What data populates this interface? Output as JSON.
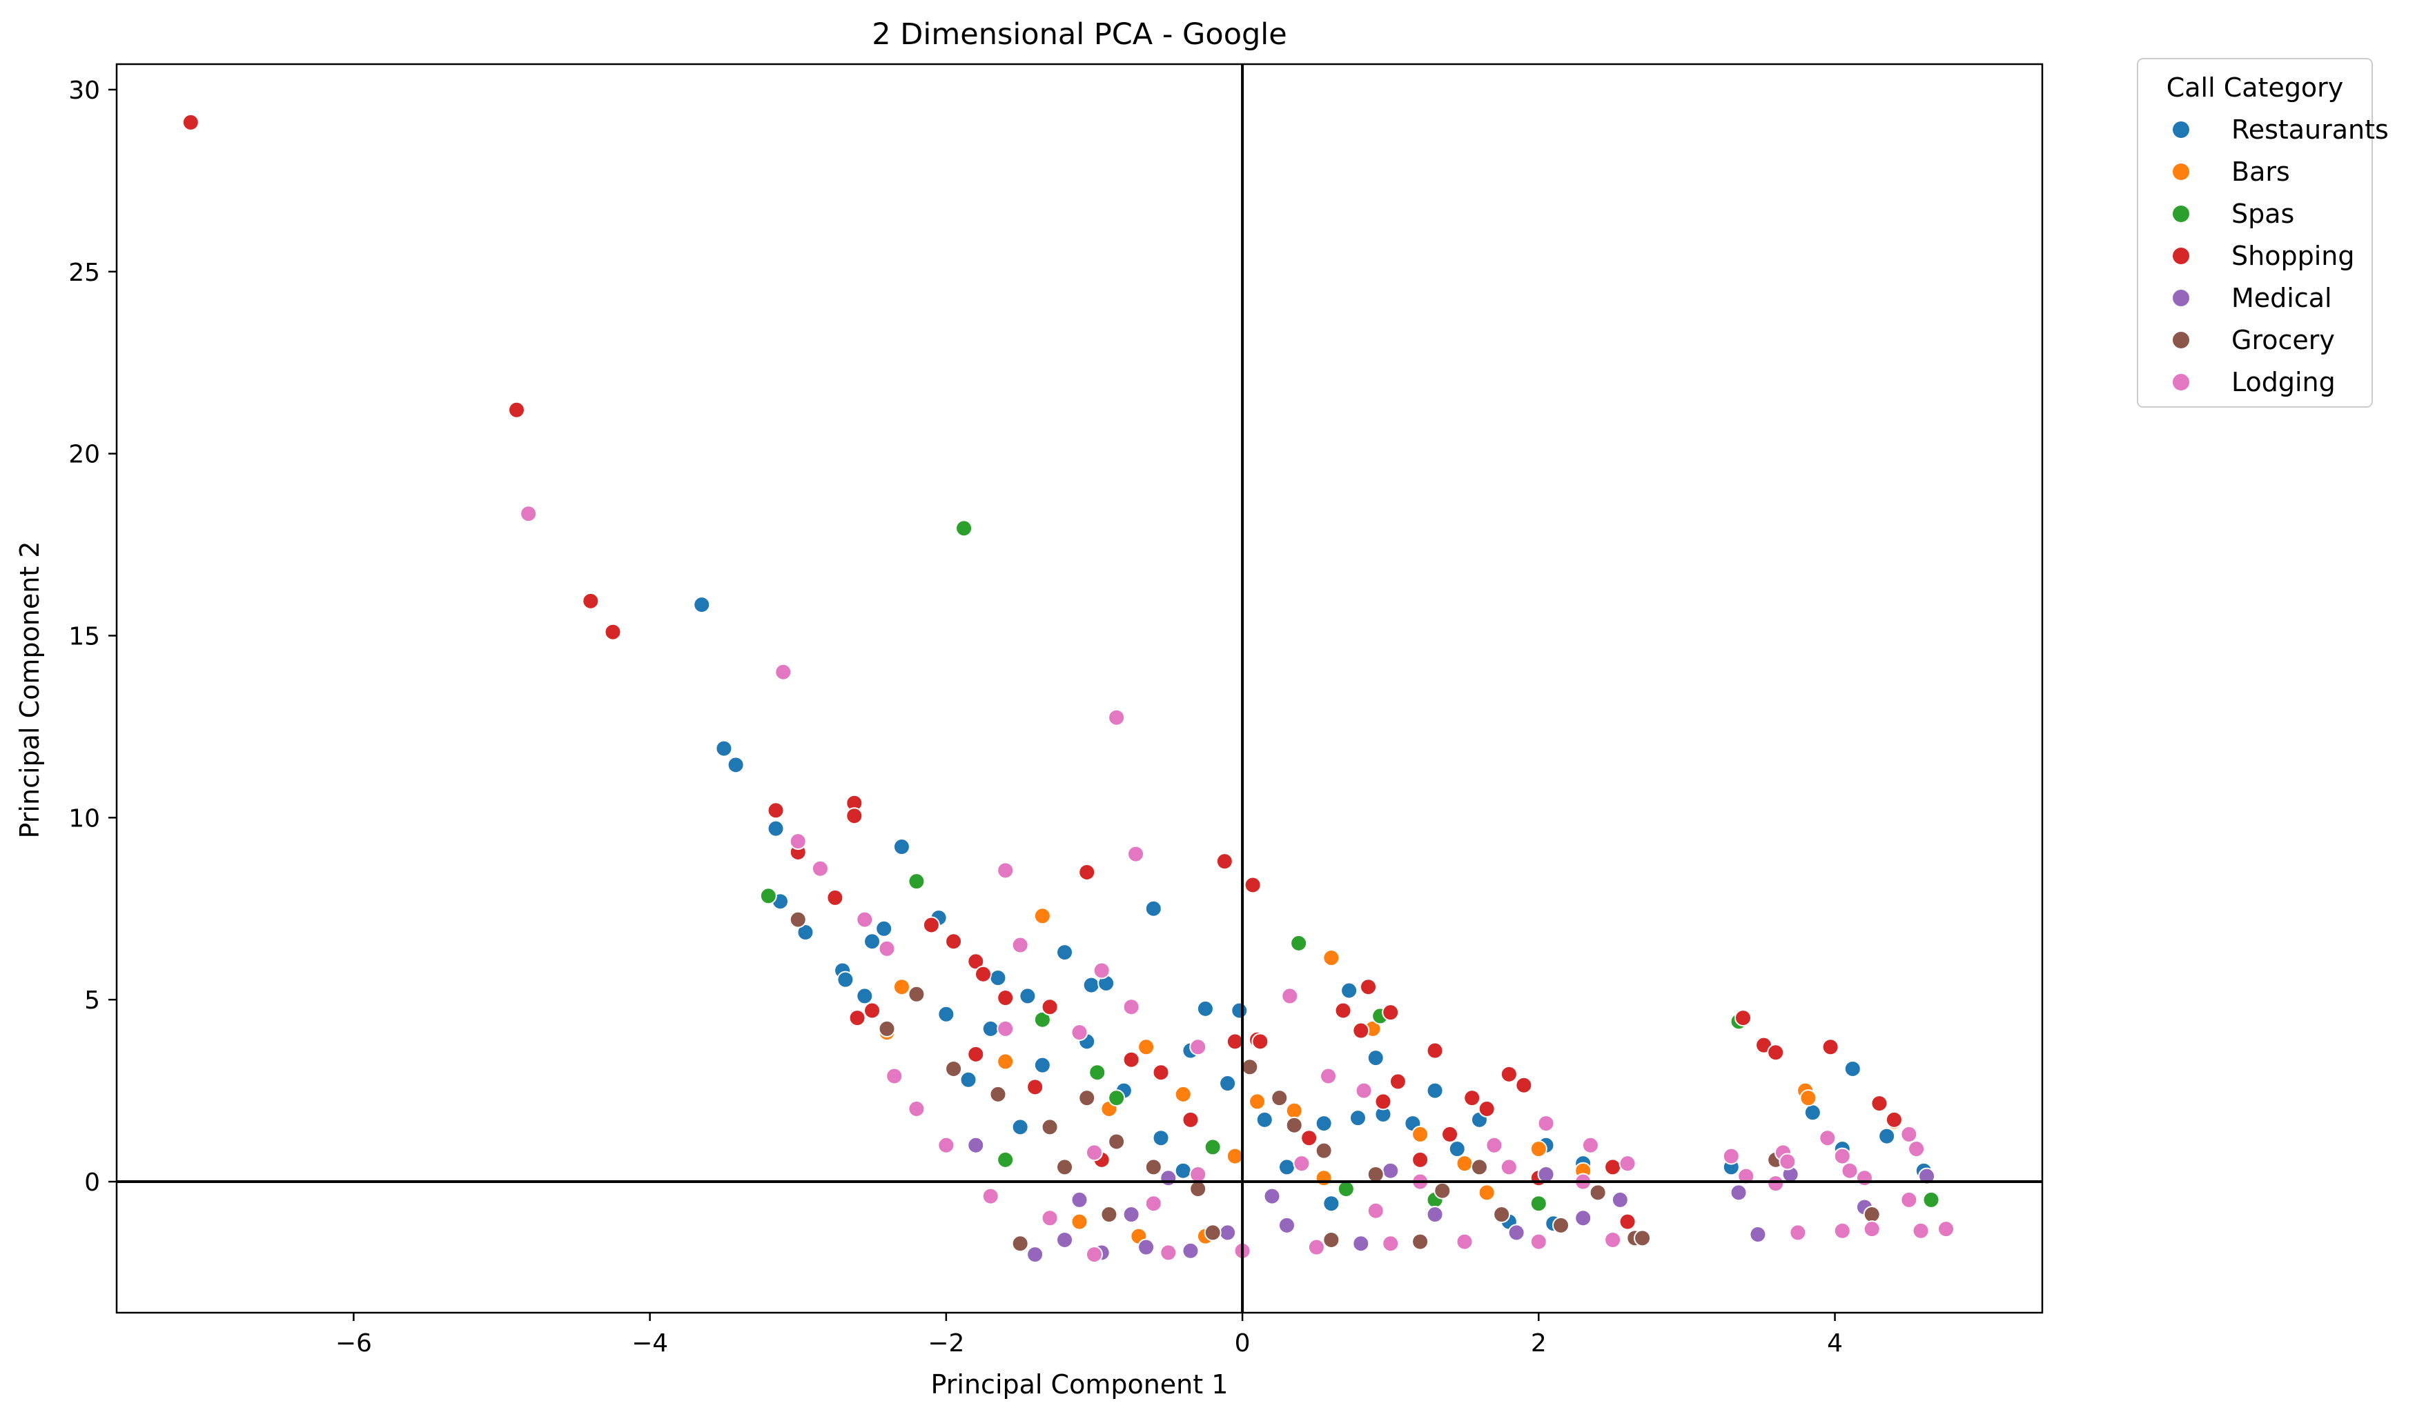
{
  "chart_data": {
    "type": "scatter",
    "title": "2 Dimensional PCA - Google",
    "xlabel": "Principal Component 1",
    "ylabel": "Principal Component 2",
    "xlim": [
      -7.6,
      5.4
    ],
    "ylim": [
      -3.6,
      30.7
    ],
    "xticks": [
      -6,
      -4,
      -2,
      0,
      2,
      4
    ],
    "yticks": [
      0,
      5,
      10,
      15,
      20,
      25,
      30
    ],
    "reference_lines": {
      "x": 0,
      "y": 0
    },
    "grid": false,
    "legend": {
      "title": "Call Category",
      "placement": "outside-top-right"
    },
    "series": [
      {
        "name": "Restaurants",
        "color": "#1f77b4",
        "points": [
          [
            -3.65,
            15.85
          ],
          [
            -3.5,
            11.9
          ],
          [
            -3.42,
            11.45
          ],
          [
            -3.15,
            9.7
          ],
          [
            -3.12,
            7.7
          ],
          [
            -2.95,
            6.85
          ],
          [
            -2.3,
            9.2
          ],
          [
            -2.42,
            6.95
          ],
          [
            -2.5,
            6.6
          ],
          [
            -2.7,
            5.8
          ],
          [
            -2.68,
            5.55
          ],
          [
            -2.55,
            5.1
          ],
          [
            -2.05,
            7.25
          ],
          [
            -2.0,
            4.6
          ],
          [
            -1.65,
            5.6
          ],
          [
            -1.45,
            5.1
          ],
          [
            -1.2,
            6.3
          ],
          [
            -1.02,
            5.4
          ],
          [
            -0.92,
            5.45
          ],
          [
            -0.6,
            7.5
          ],
          [
            -0.25,
            4.75
          ],
          [
            -0.02,
            4.7
          ],
          [
            -1.7,
            4.2
          ],
          [
            -1.35,
            3.2
          ],
          [
            -1.05,
            3.85
          ],
          [
            -0.8,
            2.5
          ],
          [
            -0.35,
            3.6
          ],
          [
            -0.1,
            2.7
          ],
          [
            0.15,
            1.7
          ],
          [
            0.55,
            1.6
          ],
          [
            0.78,
            1.75
          ],
          [
            0.95,
            1.85
          ],
          [
            1.15,
            1.6
          ],
          [
            1.3,
            2.5
          ],
          [
            1.6,
            1.7
          ],
          [
            2.05,
            1.0
          ],
          [
            2.3,
            0.5
          ],
          [
            0.9,
            3.4
          ],
          [
            0.72,
            5.25
          ],
          [
            -1.85,
            2.8
          ],
          [
            -0.55,
            1.2
          ],
          [
            0.3,
            0.4
          ],
          [
            1.8,
            -1.1
          ],
          [
            2.1,
            -1.15
          ],
          [
            3.3,
            0.4
          ],
          [
            3.85,
            1.9
          ],
          [
            4.05,
            0.9
          ],
          [
            4.12,
            3.1
          ],
          [
            4.35,
            1.25
          ],
          [
            4.6,
            0.3
          ],
          [
            -1.5,
            1.5
          ],
          [
            -0.4,
            0.3
          ],
          [
            0.6,
            -0.6
          ],
          [
            1.45,
            0.9
          ]
        ]
      },
      {
        "name": "Bars",
        "color": "#ff7f0e",
        "points": [
          [
            -2.3,
            5.35
          ],
          [
            -2.4,
            4.1
          ],
          [
            -1.35,
            7.3
          ],
          [
            -0.65,
            3.7
          ],
          [
            -0.4,
            2.4
          ],
          [
            -0.05,
            0.7
          ],
          [
            0.1,
            2.2
          ],
          [
            0.6,
            6.15
          ],
          [
            0.88,
            4.2
          ],
          [
            0.35,
            1.95
          ],
          [
            1.2,
            1.3
          ],
          [
            2.3,
            0.3
          ],
          [
            3.8,
            2.5
          ],
          [
            3.82,
            2.3
          ],
          [
            4.4,
            1.65
          ],
          [
            -0.7,
            -1.5
          ],
          [
            -1.1,
            -1.1
          ],
          [
            -0.25,
            -1.5
          ],
          [
            0.55,
            0.1
          ],
          [
            1.5,
            0.5
          ],
          [
            -1.6,
            3.3
          ],
          [
            2.0,
            0.9
          ],
          [
            1.65,
            -0.3
          ],
          [
            -0.9,
            2.0
          ]
        ]
      },
      {
        "name": "Spas",
        "color": "#2ca02c",
        "points": [
          [
            -1.88,
            17.95
          ],
          [
            -3.2,
            7.85
          ],
          [
            -2.2,
            8.25
          ],
          [
            0.38,
            6.55
          ],
          [
            0.93,
            4.55
          ],
          [
            -1.35,
            4.45
          ],
          [
            -0.98,
            3.0
          ],
          [
            -0.85,
            2.3
          ],
          [
            3.35,
            4.4
          ],
          [
            1.3,
            -0.5
          ],
          [
            4.65,
            -0.5
          ],
          [
            -0.2,
            0.95
          ],
          [
            0.7,
            -0.2
          ],
          [
            2.0,
            -0.6
          ],
          [
            -1.6,
            0.6
          ]
        ]
      },
      {
        "name": "Shopping",
        "color": "#d62728",
        "points": [
          [
            -7.1,
            29.1
          ],
          [
            -4.9,
            21.2
          ],
          [
            -4.4,
            15.95
          ],
          [
            -4.25,
            15.1
          ],
          [
            -3.15,
            10.2
          ],
          [
            -3.0,
            9.05
          ],
          [
            -2.62,
            10.4
          ],
          [
            -2.62,
            10.05
          ],
          [
            -2.75,
            7.8
          ],
          [
            -2.5,
            4.7
          ],
          [
            -2.1,
            7.05
          ],
          [
            -1.95,
            6.6
          ],
          [
            -1.8,
            6.05
          ],
          [
            -1.75,
            5.7
          ],
          [
            -1.6,
            5.05
          ],
          [
            -1.3,
            4.8
          ],
          [
            -1.05,
            8.5
          ],
          [
            -0.12,
            8.8
          ],
          [
            0.07,
            8.15
          ],
          [
            -0.75,
            3.35
          ],
          [
            -0.05,
            3.85
          ],
          [
            0.1,
            3.9
          ],
          [
            0.12,
            3.85
          ],
          [
            0.68,
            4.7
          ],
          [
            0.85,
            5.35
          ],
          [
            1.0,
            4.65
          ],
          [
            0.8,
            4.15
          ],
          [
            1.3,
            3.6
          ],
          [
            1.65,
            2.0
          ],
          [
            1.8,
            2.95
          ],
          [
            1.9,
            2.65
          ],
          [
            1.05,
            2.75
          ],
          [
            1.55,
            2.3
          ],
          [
            3.38,
            4.5
          ],
          [
            3.52,
            3.75
          ],
          [
            3.6,
            3.55
          ],
          [
            3.97,
            3.7
          ],
          [
            4.3,
            2.15
          ],
          [
            -2.6,
            4.5
          ],
          [
            -1.4,
            2.6
          ],
          [
            -0.35,
            1.7
          ],
          [
            0.45,
            1.2
          ],
          [
            1.2,
            0.6
          ],
          [
            2.6,
            -1.1
          ],
          [
            2.0,
            0.1
          ],
          [
            -0.95,
            0.6
          ],
          [
            -1.8,
            3.5
          ],
          [
            0.95,
            2.2
          ],
          [
            1.4,
            1.3
          ],
          [
            -0.55,
            3.0
          ],
          [
            2.5,
            0.4
          ],
          [
            4.4,
            1.7
          ]
        ]
      },
      {
        "name": "Medical",
        "color": "#9467bd",
        "points": [
          [
            -1.4,
            -2.0
          ],
          [
            -1.2,
            -1.6
          ],
          [
            -0.95,
            -1.95
          ],
          [
            -0.65,
            -1.8
          ],
          [
            -0.35,
            -1.9
          ],
          [
            -0.1,
            -1.4
          ],
          [
            0.3,
            -1.2
          ],
          [
            0.8,
            -1.7
          ],
          [
            1.3,
            -0.9
          ],
          [
            1.85,
            -1.4
          ],
          [
            2.3,
            -1.0
          ],
          [
            2.55,
            -0.5
          ],
          [
            3.35,
            -0.3
          ],
          [
            3.48,
            -1.45
          ],
          [
            3.7,
            0.2
          ],
          [
            4.2,
            -0.7
          ],
          [
            4.62,
            0.15
          ],
          [
            -1.8,
            1.0
          ],
          [
            -0.5,
            0.1
          ],
          [
            0.2,
            -0.4
          ],
          [
            1.0,
            0.3
          ],
          [
            -1.1,
            -0.5
          ],
          [
            2.05,
            0.2
          ],
          [
            -0.75,
            -0.9
          ]
        ]
      },
      {
        "name": "Grocery",
        "color": "#8c564b",
        "points": [
          [
            -3.0,
            7.2
          ],
          [
            -2.2,
            5.15
          ],
          [
            -2.4,
            4.2
          ],
          [
            -1.95,
            3.1
          ],
          [
            -1.65,
            2.4
          ],
          [
            -1.3,
            1.5
          ],
          [
            -1.05,
            2.3
          ],
          [
            -0.85,
            1.1
          ],
          [
            -0.6,
            0.4
          ],
          [
            -0.3,
            -0.2
          ],
          [
            0.05,
            3.15
          ],
          [
            0.25,
            2.3
          ],
          [
            0.35,
            1.55
          ],
          [
            0.55,
            0.85
          ],
          [
            0.9,
            0.2
          ],
          [
            1.35,
            -0.25
          ],
          [
            1.75,
            -0.9
          ],
          [
            2.15,
            -1.2
          ],
          [
            2.65,
            -1.55
          ],
          [
            2.7,
            -1.55
          ],
          [
            3.6,
            0.6
          ],
          [
            4.25,
            -0.9
          ],
          [
            -1.5,
            -1.7
          ],
          [
            -0.9,
            -0.9
          ],
          [
            -0.2,
            -1.4
          ],
          [
            0.6,
            -1.6
          ],
          [
            1.2,
            -1.65
          ],
          [
            -1.2,
            0.4
          ],
          [
            2.4,
            -0.3
          ],
          [
            1.6,
            0.4
          ]
        ]
      },
      {
        "name": "Lodging",
        "color": "#e377c2",
        "points": [
          [
            -4.82,
            18.35
          ],
          [
            -3.1,
            14.0
          ],
          [
            -0.85,
            12.75
          ],
          [
            -3.0,
            9.35
          ],
          [
            -2.85,
            8.6
          ],
          [
            -2.55,
            7.2
          ],
          [
            -2.4,
            6.4
          ],
          [
            -1.6,
            8.55
          ],
          [
            -1.5,
            6.5
          ],
          [
            -0.72,
            9.0
          ],
          [
            -0.95,
            5.8
          ],
          [
            -1.6,
            4.2
          ],
          [
            -1.1,
            4.1
          ],
          [
            -0.75,
            4.8
          ],
          [
            -0.3,
            3.7
          ],
          [
            0.32,
            5.1
          ],
          [
            0.58,
            2.9
          ],
          [
            0.82,
            2.5
          ],
          [
            1.7,
            1.0
          ],
          [
            2.05,
            1.6
          ],
          [
            2.35,
            1.0
          ],
          [
            2.6,
            0.5
          ],
          [
            3.3,
            0.7
          ],
          [
            3.65,
            0.8
          ],
          [
            3.68,
            0.55
          ],
          [
            3.95,
            1.2
          ],
          [
            4.05,
            0.7
          ],
          [
            4.1,
            0.3
          ],
          [
            4.2,
            0.1
          ],
          [
            4.5,
            1.3
          ],
          [
            4.55,
            0.9
          ],
          [
            4.58,
            -1.35
          ],
          [
            4.75,
            -1.3
          ],
          [
            4.5,
            -0.5
          ],
          [
            4.05,
            -1.35
          ],
          [
            3.75,
            -1.4
          ],
          [
            3.6,
            -0.05
          ],
          [
            2.5,
            -1.6
          ],
          [
            2.0,
            -1.65
          ],
          [
            1.5,
            -1.65
          ],
          [
            1.0,
            -1.7
          ],
          [
            0.5,
            -1.8
          ],
          [
            0.0,
            -1.9
          ],
          [
            -0.5,
            -1.95
          ],
          [
            -1.0,
            -2.0
          ],
          [
            -1.7,
            -0.4
          ],
          [
            -2.0,
            1.0
          ],
          [
            -2.2,
            2.0
          ],
          [
            -2.35,
            2.9
          ],
          [
            -1.0,
            0.8
          ],
          [
            -0.3,
            0.2
          ],
          [
            0.4,
            0.5
          ],
          [
            1.2,
            0.0
          ],
          [
            1.8,
            0.4
          ],
          [
            2.3,
            0.0
          ],
          [
            4.25,
            -1.3
          ],
          [
            3.4,
            0.15
          ],
          [
            -0.6,
            -0.6
          ],
          [
            0.9,
            -0.8
          ],
          [
            -1.3,
            -1.0
          ]
        ]
      }
    ]
  }
}
